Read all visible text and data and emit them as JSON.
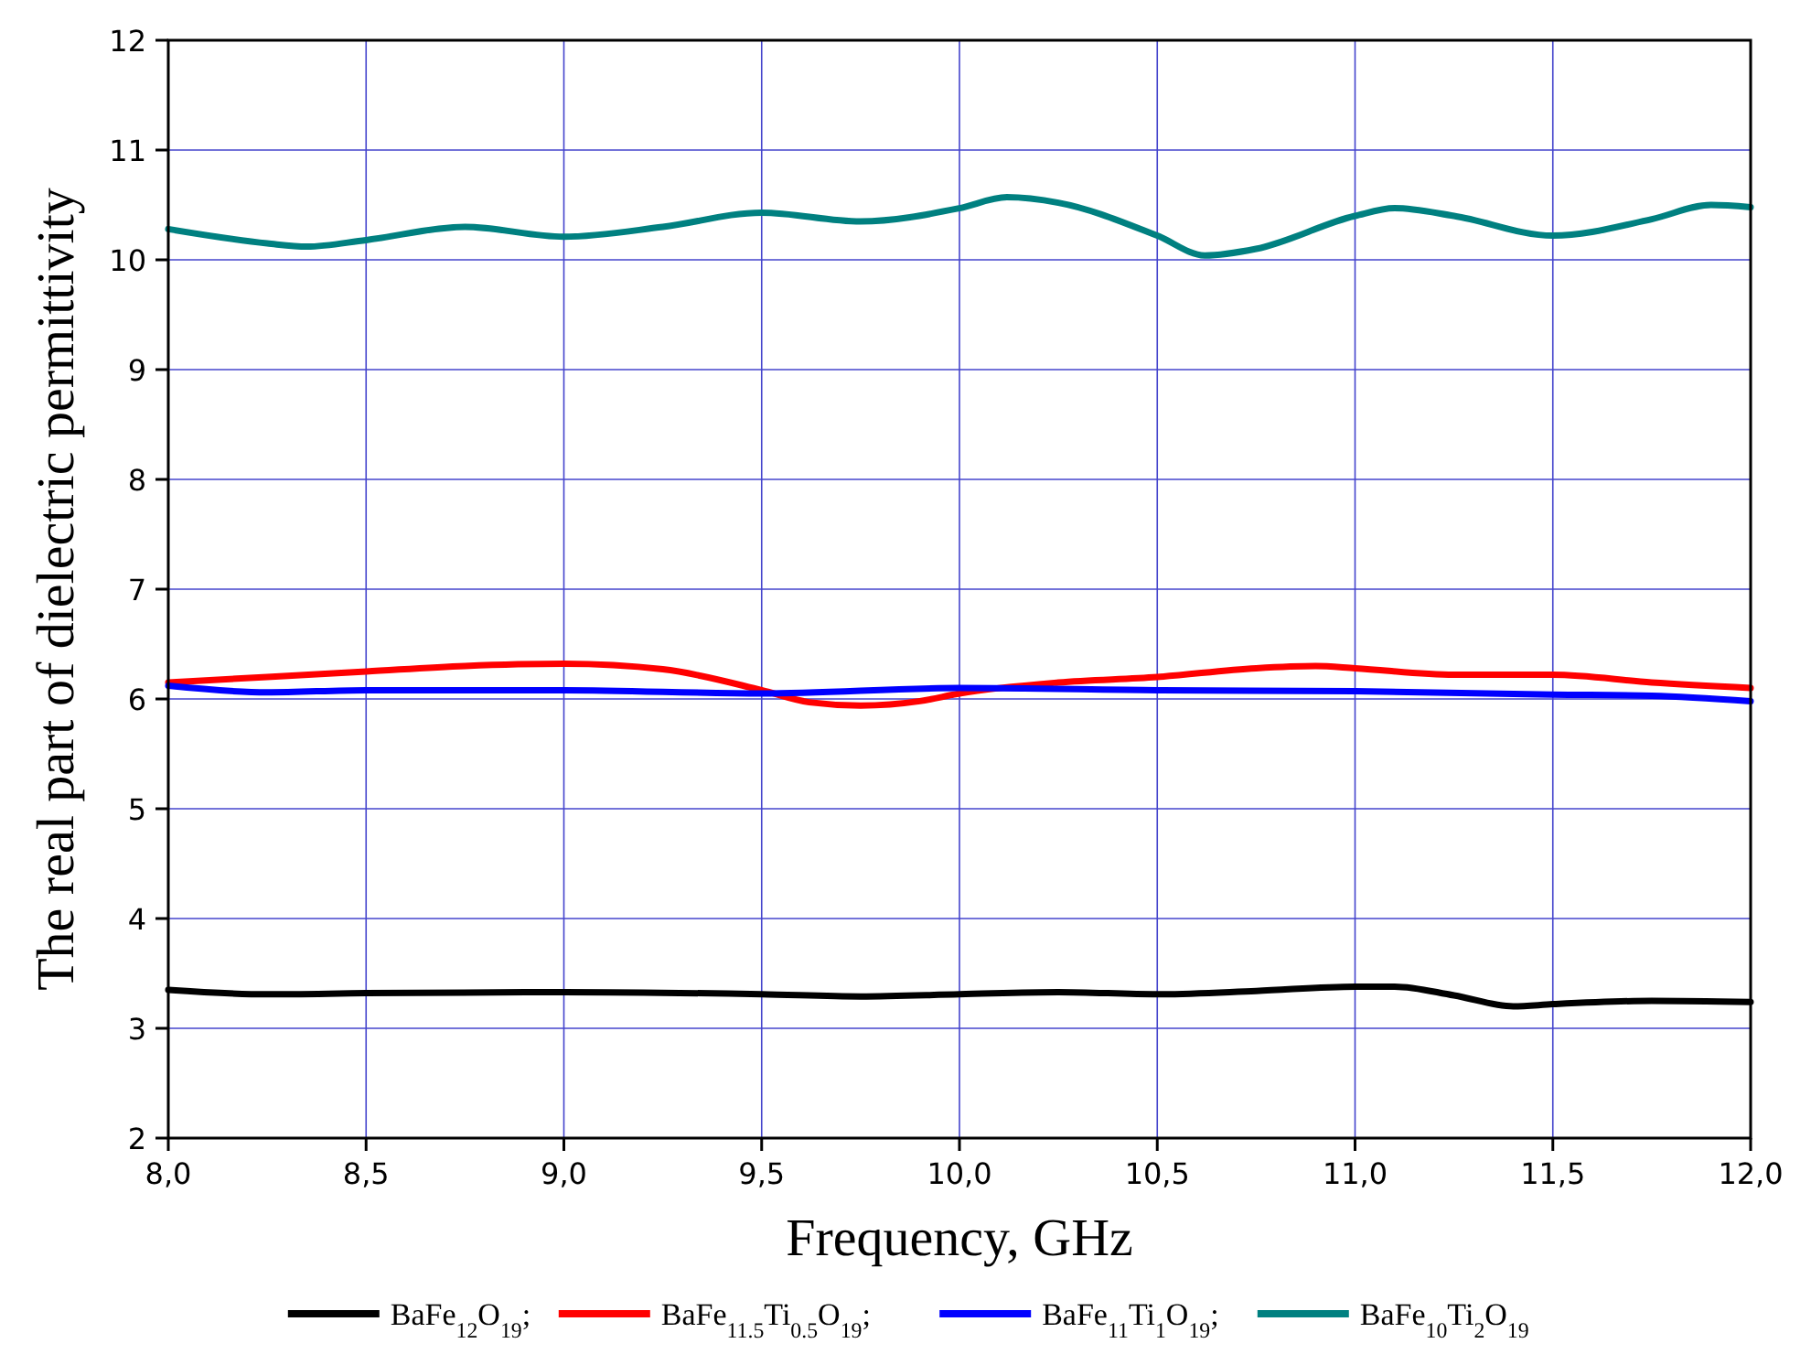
{
  "chart_data": {
    "type": "line",
    "xlabel": "Frequency, GHz",
    "ylabel": "The real part of dielectric permittivity",
    "xlim": [
      8,
      12
    ],
    "ylim": [
      2,
      12
    ],
    "xticks": [
      {
        "value": 8,
        "label": "8,0"
      },
      {
        "value": 8.5,
        "label": "8,5"
      },
      {
        "value": 9,
        "label": "9,0"
      },
      {
        "value": 9.5,
        "label": "9,5"
      },
      {
        "value": 10,
        "label": "10,0"
      },
      {
        "value": 10.5,
        "label": "10,5"
      },
      {
        "value": 11,
        "label": "11,0"
      },
      {
        "value": 11.5,
        "label": "11,5"
      },
      {
        "value": 12,
        "label": "12,0"
      }
    ],
    "yticks": [
      2,
      3,
      4,
      5,
      6,
      7,
      8,
      9,
      10,
      11,
      12
    ],
    "grid": true,
    "legend": "bottom",
    "line_style": "solid",
    "marker": "none",
    "series": [
      {
        "name": "BaFe$_{12}$O$_{19}$;",
        "color": "#000000",
        "x": [
          8,
          8.25,
          8.5,
          9,
          9.5,
          9.75,
          10,
          10.25,
          10.5,
          10.75,
          11,
          11.1,
          11.25,
          11.4,
          11.5,
          11.75,
          12
        ],
        "values": [
          3.35,
          3.31,
          3.32,
          3.33,
          3.31,
          3.29,
          3.31,
          3.33,
          3.31,
          3.34,
          3.38,
          3.38,
          3.3,
          3.2,
          3.22,
          3.25,
          3.24
        ]
      },
      {
        "name": "BaFe$_{11.5}$Ti$_{0.5}$O$_{19}$;",
        "color": "#ff0000",
        "x": [
          8,
          8.5,
          8.75,
          9,
          9.25,
          9.5,
          9.62,
          9.75,
          9.9,
          10,
          10.25,
          10.5,
          10.75,
          10.9,
          11,
          11.25,
          11.5,
          11.75,
          12
        ],
        "values": [
          6.15,
          6.25,
          6.3,
          6.32,
          6.27,
          6.08,
          5.97,
          5.94,
          5.98,
          6.05,
          6.15,
          6.2,
          6.28,
          6.3,
          6.28,
          6.22,
          6.22,
          6.15,
          6.1
        ]
      },
      {
        "name": "BaFe$_{11}$Ti$_{1}$O$_{19}$;",
        "color": "#0000ff",
        "x": [
          8,
          8.25,
          8.5,
          9,
          9.5,
          10,
          10.5,
          11,
          11.5,
          11.75,
          12
        ],
        "values": [
          6.12,
          6.06,
          6.08,
          6.08,
          6.05,
          6.1,
          6.08,
          6.07,
          6.04,
          6.03,
          5.98
        ]
      },
      {
        "name": "BaFe$_{10}$Ti$_{2}$O$_{19}$",
        "color": "#008080",
        "x": [
          8,
          8.25,
          8.35,
          8.5,
          8.75,
          9,
          9.25,
          9.5,
          9.75,
          10,
          10.12,
          10.25,
          10.5,
          10.62,
          10.75,
          11,
          11.1,
          11.25,
          11.5,
          11.75,
          11.9,
          12
        ],
        "values": [
          10.28,
          10.15,
          10.12,
          10.18,
          10.3,
          10.21,
          10.3,
          10.43,
          10.35,
          10.47,
          10.57,
          10.52,
          10.22,
          10.04,
          10.1,
          10.4,
          10.47,
          10.4,
          10.22,
          10.37,
          10.5,
          10.48
        ]
      }
    ]
  }
}
